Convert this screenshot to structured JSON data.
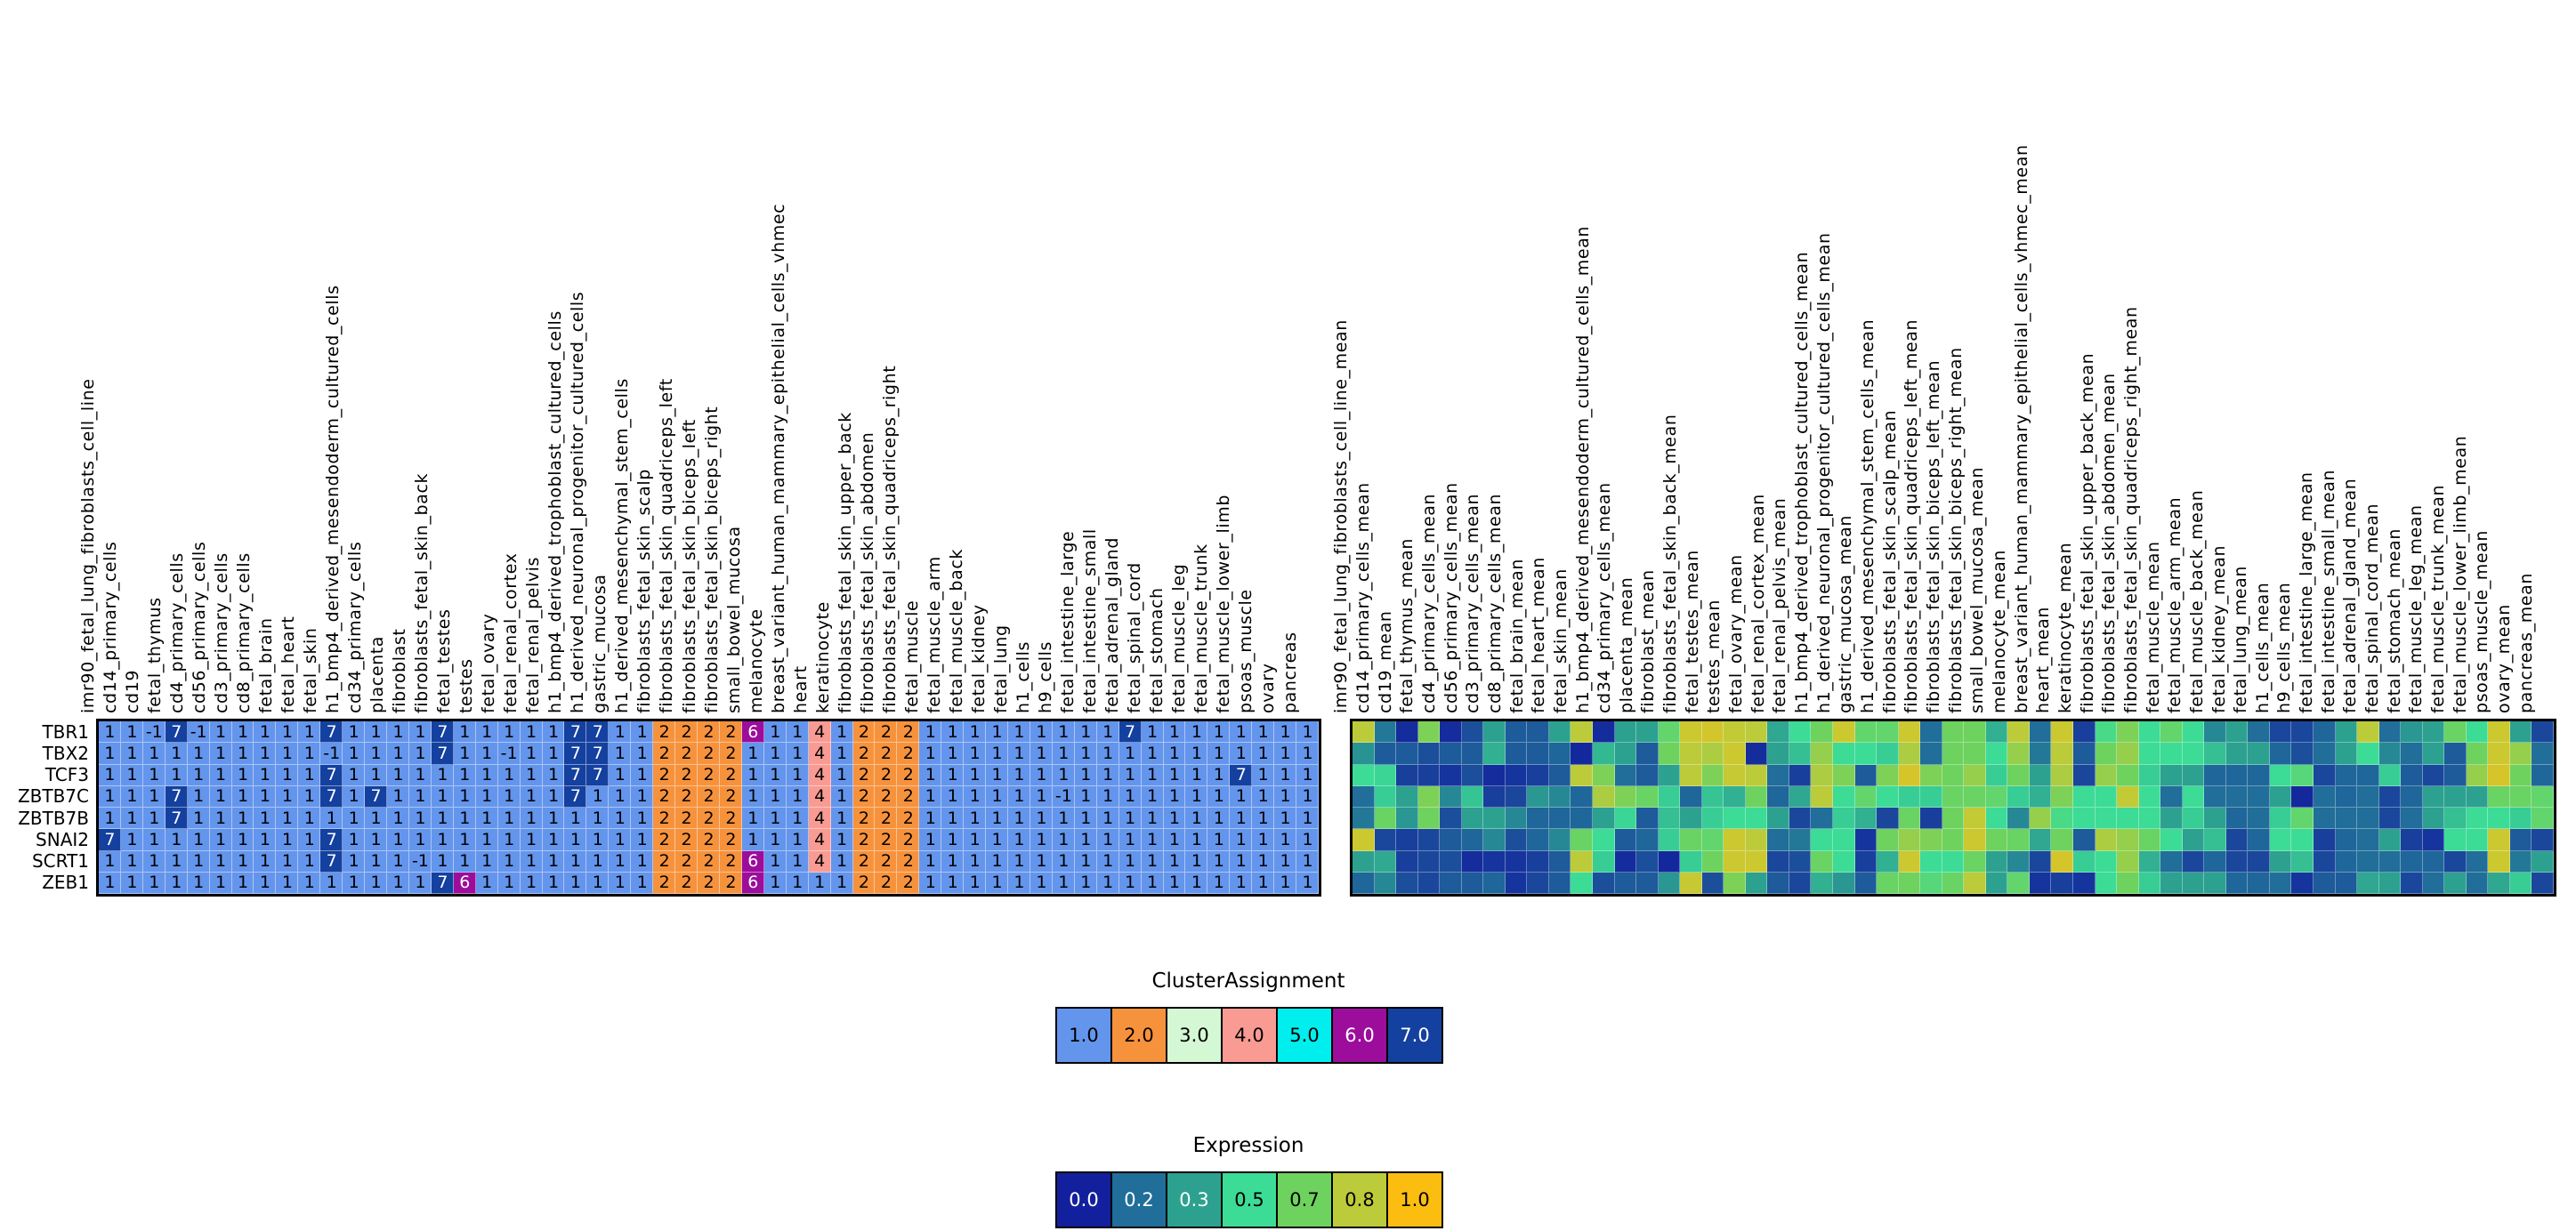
{
  "rows": [
    "TBR1",
    "TBX2",
    "TCF3",
    "ZBTB7C",
    "ZBTB7B",
    "SNAI2",
    "SCRT1",
    "ZEB1"
  ],
  "legends": {
    "cluster": {
      "title": "ClusterAssignment",
      "entries": [
        {
          "label": "1.0",
          "color": "#6495ED",
          "text": "#000000"
        },
        {
          "label": "2.0",
          "color": "#F7923C",
          "text": "#000000"
        },
        {
          "label": "3.0",
          "color": "#D4F7D4",
          "text": "#000000"
        },
        {
          "label": "4.0",
          "color": "#F99B93",
          "text": "#000000"
        },
        {
          "label": "5.0",
          "color": "#00EEEE",
          "text": "#000000"
        },
        {
          "label": "6.0",
          "color": "#9C0D9C",
          "text": "#FFFFFF"
        },
        {
          "label": "7.0",
          "color": "#14409F",
          "text": "#FFFFFF"
        }
      ]
    },
    "expression": {
      "title": "Expression",
      "entries": [
        {
          "label": "0.0",
          "color": "#13209E",
          "text": "#FFFFFF"
        },
        {
          "label": "0.2",
          "color": "#206E99",
          "text": "#FFFFFF"
        },
        {
          "label": "0.3",
          "color": "#2DA190",
          "text": "#FFFFFF"
        },
        {
          "label": "0.5",
          "color": "#3CDC96",
          "text": "#000000"
        },
        {
          "label": "0.7",
          "color": "#6ED25E",
          "text": "#000000"
        },
        {
          "label": "0.8",
          "color": "#BCCB3A",
          "text": "#000000"
        },
        {
          "label": "1.0",
          "color": "#FCBD11",
          "text": "#000000"
        }
      ]
    }
  },
  "cluster_colors": {
    "-1": "#6495ED",
    "1": "#6495ED",
    "2": "#F7923C",
    "3": "#D4F7D4",
    "4": "#F99B93",
    "5": "#00EEEE",
    "6": "#9C0D9C",
    "7": "#14409F"
  },
  "expression_colormap": [
    {
      "v": 0.0,
      "c": "#13209E"
    },
    {
      "v": 0.2,
      "c": "#206E99"
    },
    {
      "v": 0.3,
      "c": "#2DA190"
    },
    {
      "v": 0.5,
      "c": "#3CDC96"
    },
    {
      "v": 0.7,
      "c": "#6ED25E"
    },
    {
      "v": 0.8,
      "c": "#BCCB3A"
    },
    {
      "v": 1.0,
      "c": "#FCBD11"
    }
  ],
  "chart_data": [
    {
      "type": "heatmap",
      "name": "cluster_assignment",
      "legend_title": "ClusterAssignment",
      "value_domain": [
        -1,
        7
      ],
      "rows": [
        "TBR1",
        "TBX2",
        "TCF3",
        "ZBTB7C",
        "ZBTB7B",
        "SNAI2",
        "SCRT1",
        "ZEB1"
      ],
      "columns": [
        "imr90_fetal_lung_fibroblasts_cell_line",
        "cd14_primary_cells",
        "cd19",
        "fetal_thymus",
        "cd4_primary_cells",
        "cd56_primary_cells",
        "cd3_primary_cells",
        "cd8_primary_cells",
        "fetal_brain",
        "fetal_heart",
        "fetal_skin",
        "h1_bmp4_derived_mesendoderm_cultured_cells",
        "cd34_primary_cells",
        "placenta",
        "fibroblast",
        "fibroblasts_fetal_skin_back",
        "fetal_testes",
        "testes",
        "fetal_ovary",
        "fetal_renal_cortex",
        "fetal_renal_pelvis",
        "h1_bmp4_derived_trophoblast_cultured_cells",
        "h1_derived_neuronal_progenitor_cultured_cells",
        "gastric_mucosa",
        "h1_derived_mesenchymal_stem_cells",
        "fibroblasts_fetal_skin_scalp",
        "fibroblasts_fetal_skin_quadriceps_left",
        "fibroblasts_fetal_skin_biceps_left",
        "fibroblasts_fetal_skin_biceps_right",
        "small_bowel_mucosa",
        "melanocyte",
        "breast_variant_human_mammary_epithelial_cells_vhmec",
        "heart",
        "keratinocyte",
        "fibroblasts_fetal_skin_upper_back",
        "fibroblasts_fetal_skin_abdomen",
        "fibroblasts_fetal_skin_quadriceps_right",
        "fetal_muscle",
        "fetal_muscle_arm",
        "fetal_muscle_back",
        "fetal_kidney",
        "fetal_lung",
        "h1_cells",
        "h9_cells",
        "fetal_intestine_large",
        "fetal_intestine_small",
        "fetal_adrenal_gland",
        "fetal_spinal_cord",
        "fetal_stomach",
        "fetal_muscle_leg",
        "fetal_muscle_trunk",
        "fetal_muscle_lower_limb",
        "psoas_muscle",
        "ovary",
        "pancreas"
      ],
      "values": [
        [
          1,
          1,
          -1,
          7,
          -1,
          1,
          1,
          1,
          1,
          1,
          7,
          1,
          1,
          1,
          1,
          7,
          1,
          1,
          1,
          1,
          1,
          7,
          7,
          1,
          1,
          2,
          2,
          2,
          2,
          6,
          1,
          1,
          4,
          1,
          2,
          2,
          2,
          1,
          1,
          1,
          1,
          1,
          1,
          1,
          1,
          1,
          7,
          1,
          1,
          1,
          1,
          1,
          1,
          1,
          1
        ],
        [
          1,
          1,
          1,
          1,
          1,
          1,
          1,
          1,
          1,
          1,
          -1,
          1,
          1,
          1,
          1,
          7,
          1,
          1,
          -1,
          1,
          1,
          7,
          7,
          1,
          1,
          2,
          2,
          2,
          2,
          1,
          1,
          1,
          4,
          1,
          2,
          2,
          2,
          1,
          1,
          1,
          1,
          1,
          1,
          1,
          1,
          1,
          1,
          1,
          1,
          1,
          1,
          1,
          1,
          1,
          1
        ],
        [
          1,
          1,
          1,
          1,
          1,
          1,
          1,
          1,
          1,
          1,
          7,
          1,
          1,
          1,
          1,
          1,
          1,
          1,
          1,
          1,
          1,
          7,
          7,
          1,
          1,
          2,
          2,
          2,
          2,
          1,
          1,
          1,
          4,
          1,
          2,
          2,
          2,
          1,
          1,
          1,
          1,
          1,
          1,
          1,
          1,
          1,
          1,
          1,
          1,
          1,
          1,
          7,
          1,
          1,
          1
        ],
        [
          1,
          1,
          1,
          7,
          1,
          1,
          1,
          1,
          1,
          1,
          7,
          1,
          7,
          1,
          1,
          1,
          1,
          1,
          1,
          1,
          1,
          7,
          1,
          1,
          1,
          2,
          2,
          2,
          2,
          1,
          1,
          1,
          4,
          1,
          2,
          2,
          2,
          1,
          1,
          1,
          1,
          1,
          1,
          -1,
          1,
          1,
          1,
          1,
          1,
          1,
          1,
          1,
          1,
          1,
          1
        ],
        [
          1,
          1,
          1,
          7,
          1,
          1,
          1,
          1,
          1,
          1,
          1,
          1,
          1,
          1,
          1,
          1,
          1,
          1,
          1,
          1,
          1,
          1,
          1,
          1,
          1,
          2,
          2,
          2,
          2,
          1,
          1,
          1,
          4,
          1,
          2,
          2,
          2,
          1,
          1,
          1,
          1,
          1,
          1,
          1,
          1,
          1,
          1,
          1,
          1,
          1,
          1,
          1,
          1,
          1,
          1
        ],
        [
          7,
          1,
          1,
          1,
          1,
          1,
          1,
          1,
          1,
          1,
          7,
          1,
          1,
          1,
          1,
          1,
          1,
          1,
          1,
          1,
          1,
          1,
          1,
          1,
          1,
          2,
          2,
          2,
          2,
          1,
          1,
          1,
          4,
          1,
          2,
          2,
          2,
          1,
          1,
          1,
          1,
          1,
          1,
          1,
          1,
          1,
          1,
          1,
          1,
          1,
          1,
          1,
          1,
          1,
          1
        ],
        [
          1,
          1,
          1,
          1,
          1,
          1,
          1,
          1,
          1,
          1,
          7,
          1,
          1,
          1,
          -1,
          1,
          1,
          1,
          1,
          1,
          1,
          1,
          1,
          1,
          1,
          2,
          2,
          2,
          2,
          6,
          1,
          1,
          4,
          1,
          2,
          2,
          2,
          1,
          1,
          1,
          1,
          1,
          1,
          1,
          1,
          1,
          1,
          1,
          1,
          1,
          1,
          1,
          1,
          1,
          1
        ],
        [
          1,
          1,
          1,
          1,
          1,
          1,
          1,
          1,
          1,
          1,
          1,
          1,
          1,
          1,
          1,
          7,
          6,
          1,
          1,
          1,
          1,
          1,
          1,
          1,
          1,
          2,
          2,
          2,
          2,
          6,
          1,
          1,
          1,
          1,
          2,
          2,
          2,
          1,
          1,
          1,
          1,
          1,
          1,
          1,
          1,
          1,
          1,
          1,
          1,
          1,
          1,
          1,
          1,
          1,
          1
        ]
      ]
    },
    {
      "type": "heatmap",
      "name": "expression",
      "legend_title": "Expression",
      "value_range": [
        0,
        1
      ],
      "rows": [
        "TBR1",
        "TBX2",
        "TCF3",
        "ZBTB7C",
        "ZBTB7B",
        "SNAI2",
        "SCRT1",
        "ZEB1"
      ],
      "columns": [
        "imr90_fetal_lung_fibroblasts_cell_line_mean",
        "cd14_primary_cells_mean",
        "cd19_mean",
        "fetal_thymus_mean",
        "cd4_primary_cells_mean",
        "cd56_primary_cells_mean",
        "cd3_primary_cells_mean",
        "cd8_primary_cells_mean",
        "fetal_brain_mean",
        "fetal_heart_mean",
        "fetal_skin_mean",
        "h1_bmp4_derived_mesendoderm_cultured_cells_mean",
        "cd34_primary_cells_mean",
        "placenta_mean",
        "fibroblast_mean",
        "fibroblasts_fetal_skin_back_mean",
        "fetal_testes_mean",
        "testes_mean",
        "fetal_ovary_mean",
        "fetal_renal_cortex_mean",
        "fetal_renal_pelvis_mean",
        "h1_bmp4_derived_trophoblast_cultured_cells_mean",
        "h1_derived_neuronal_progenitor_cultured_cells_mean",
        "gastric_mucosa_mean",
        "h1_derived_mesenchymal_stem_cells_mean",
        "fibroblasts_fetal_skin_scalp_mean",
        "fibroblasts_fetal_skin_quadriceps_left_mean",
        "fibroblasts_fetal_skin_biceps_left_mean",
        "fibroblasts_fetal_skin_biceps_right_mean",
        "small_bowel_mucosa_mean",
        "melanocyte_mean",
        "breast_variant_human_mammary_epithelial_cells_vhmec_mean",
        "heart_mean",
        "keratinocyte_mean",
        "fibroblasts_fetal_skin_upper_back_mean",
        "fibroblasts_fetal_skin_abdomen_mean",
        "fibroblasts_fetal_skin_quadriceps_right_mean",
        "fetal_muscle_mean",
        "fetal_muscle_arm_mean",
        "fetal_muscle_back_mean",
        "fetal_kidney_mean",
        "fetal_lung_mean",
        "h1_cells_mean",
        "h9_cells_mean",
        "fetal_intestine_large_mean",
        "fetal_intestine_small_mean",
        "fetal_adrenal_gland_mean",
        "fetal_spinal_cord_mean",
        "fetal_stomach_mean",
        "fetal_muscle_leg_mean",
        "fetal_muscle_trunk_mean",
        "fetal_muscle_lower_limb_mean",
        "psoas_muscle_mean",
        "ovary_mean",
        "pancreas_mean"
      ],
      "values": [
        [
          0.8,
          0.22,
          0.03,
          0.72,
          0.03,
          0.12,
          0.3,
          0.15,
          0.15,
          0.3,
          0.8,
          0.03,
          0.3,
          0.3,
          0.65,
          0.85,
          0.87,
          0.82,
          0.8,
          0.32,
          0.5,
          0.7,
          0.85,
          0.65,
          0.65,
          0.85,
          0.2,
          0.7,
          0.7,
          0.35,
          0.8,
          0.2,
          0.85,
          0.08,
          0.55,
          0.72,
          0.5,
          0.65,
          0.5,
          0.25,
          0.3,
          0.2,
          0.1,
          0.1,
          0.18,
          0.3,
          0.8,
          0.2,
          0.28,
          0.3,
          0.68,
          0.5,
          0.85,
          0.3,
          0.1
        ],
        [
          0.27,
          0.15,
          0.15,
          0.12,
          0.15,
          0.15,
          0.35,
          0.15,
          0.15,
          0.18,
          0.02,
          0.38,
          0.3,
          0.15,
          0.7,
          0.8,
          0.78,
          0.85,
          0.03,
          0.3,
          0.4,
          0.75,
          0.5,
          0.5,
          0.45,
          0.78,
          0.2,
          0.7,
          0.7,
          0.5,
          0.75,
          0.22,
          0.8,
          0.15,
          0.7,
          0.75,
          0.5,
          0.5,
          0.5,
          0.4,
          0.3,
          0.3,
          0.18,
          0.12,
          0.2,
          0.3,
          0.5,
          0.25,
          0.2,
          0.3,
          0.15,
          0.7,
          0.85,
          0.75,
          0.2
        ],
        [
          0.5,
          0.48,
          0.08,
          0.08,
          0.05,
          0.12,
          0.03,
          0.05,
          0.08,
          0.15,
          0.8,
          0.72,
          0.2,
          0.15,
          0.3,
          0.8,
          0.72,
          0.83,
          0.8,
          0.2,
          0.08,
          0.78,
          0.72,
          0.15,
          0.72,
          0.88,
          0.72,
          0.7,
          0.75,
          0.45,
          0.7,
          0.3,
          0.78,
          0.1,
          0.75,
          0.7,
          0.45,
          0.3,
          0.3,
          0.18,
          0.18,
          0.18,
          0.5,
          0.6,
          0.1,
          0.18,
          0.18,
          0.45,
          0.15,
          0.1,
          0.15,
          0.75,
          0.88,
          0.7,
          0.18
        ],
        [
          0.2,
          0.45,
          0.3,
          0.72,
          0.25,
          0.42,
          0.08,
          0.1,
          0.28,
          0.25,
          0.18,
          0.78,
          0.72,
          0.68,
          0.45,
          0.18,
          0.42,
          0.35,
          0.7,
          0.18,
          0.32,
          0.8,
          0.5,
          0.65,
          0.5,
          0.45,
          0.45,
          0.68,
          0.68,
          0.65,
          0.45,
          0.35,
          0.72,
          0.5,
          0.5,
          0.82,
          0.5,
          0.2,
          0.5,
          0.2,
          0.2,
          0.2,
          0.3,
          0.02,
          0.2,
          0.18,
          0.2,
          0.1,
          0.18,
          0.3,
          0.3,
          0.3,
          0.68,
          0.68,
          0.65
        ],
        [
          0.22,
          0.68,
          0.28,
          0.7,
          0.12,
          0.3,
          0.3,
          0.25,
          0.18,
          0.18,
          0.18,
          0.3,
          0.48,
          0.15,
          0.4,
          0.3,
          0.45,
          0.5,
          0.5,
          0.3,
          0.1,
          0.2,
          0.45,
          0.35,
          0.1,
          0.68,
          0.08,
          0.7,
          0.82,
          0.5,
          0.25,
          0.75,
          0.55,
          0.5,
          0.5,
          0.5,
          0.5,
          0.3,
          0.45,
          0.3,
          0.18,
          0.2,
          0.45,
          0.65,
          0.2,
          0.2,
          0.2,
          0.1,
          0.2,
          0.3,
          0.4,
          0.5,
          0.5,
          0.45,
          0.65
        ],
        [
          0.85,
          0.1,
          0.08,
          0.1,
          0.15,
          0.18,
          0.25,
          0.12,
          0.18,
          0.25,
          0.68,
          0.5,
          0.15,
          0.18,
          0.45,
          0.68,
          0.65,
          0.85,
          0.8,
          0.2,
          0.22,
          0.5,
          0.5,
          0.05,
          0.7,
          0.75,
          0.72,
          0.7,
          0.85,
          0.7,
          0.68,
          0.32,
          0.7,
          0.15,
          0.78,
          0.75,
          0.68,
          0.5,
          0.3,
          0.4,
          0.1,
          0.18,
          0.5,
          0.5,
          0.08,
          0.18,
          0.2,
          0.3,
          0.08,
          0.05,
          0.5,
          0.5,
          0.85,
          0.15,
          0.1
        ],
        [
          0.3,
          0.33,
          0.08,
          0.1,
          0.12,
          0.03,
          0.05,
          0.05,
          0.08,
          0.15,
          0.8,
          0.45,
          0.03,
          0.12,
          0.02,
          0.45,
          0.7,
          0.85,
          0.85,
          0.1,
          0.12,
          0.68,
          0.5,
          0.08,
          0.35,
          0.85,
          0.5,
          0.5,
          0.68,
          0.3,
          0.25,
          0.1,
          0.88,
          0.45,
          0.5,
          0.75,
          0.35,
          0.2,
          0.1,
          0.18,
          0.1,
          0.1,
          0.3,
          0.4,
          0.1,
          0.18,
          0.2,
          0.2,
          0.18,
          0.18,
          0.1,
          0.2,
          0.85,
          0.22,
          0.3
        ],
        [
          0.18,
          0.25,
          0.12,
          0.1,
          0.15,
          0.15,
          0.18,
          0.05,
          0.1,
          0.15,
          0.5,
          0.12,
          0.15,
          0.15,
          0.28,
          0.83,
          0.12,
          0.72,
          0.3,
          0.15,
          0.1,
          0.35,
          0.28,
          0.15,
          0.68,
          0.7,
          0.6,
          0.68,
          0.8,
          0.3,
          0.65,
          0.05,
          0.08,
          0.05,
          0.5,
          0.7,
          0.45,
          0.3,
          0.3,
          0.3,
          0.18,
          0.18,
          0.2,
          0.05,
          0.15,
          0.15,
          0.32,
          0.3,
          0.1,
          0.2,
          0.3,
          0.2,
          0.32,
          0.45,
          0.1
        ]
      ]
    }
  ]
}
